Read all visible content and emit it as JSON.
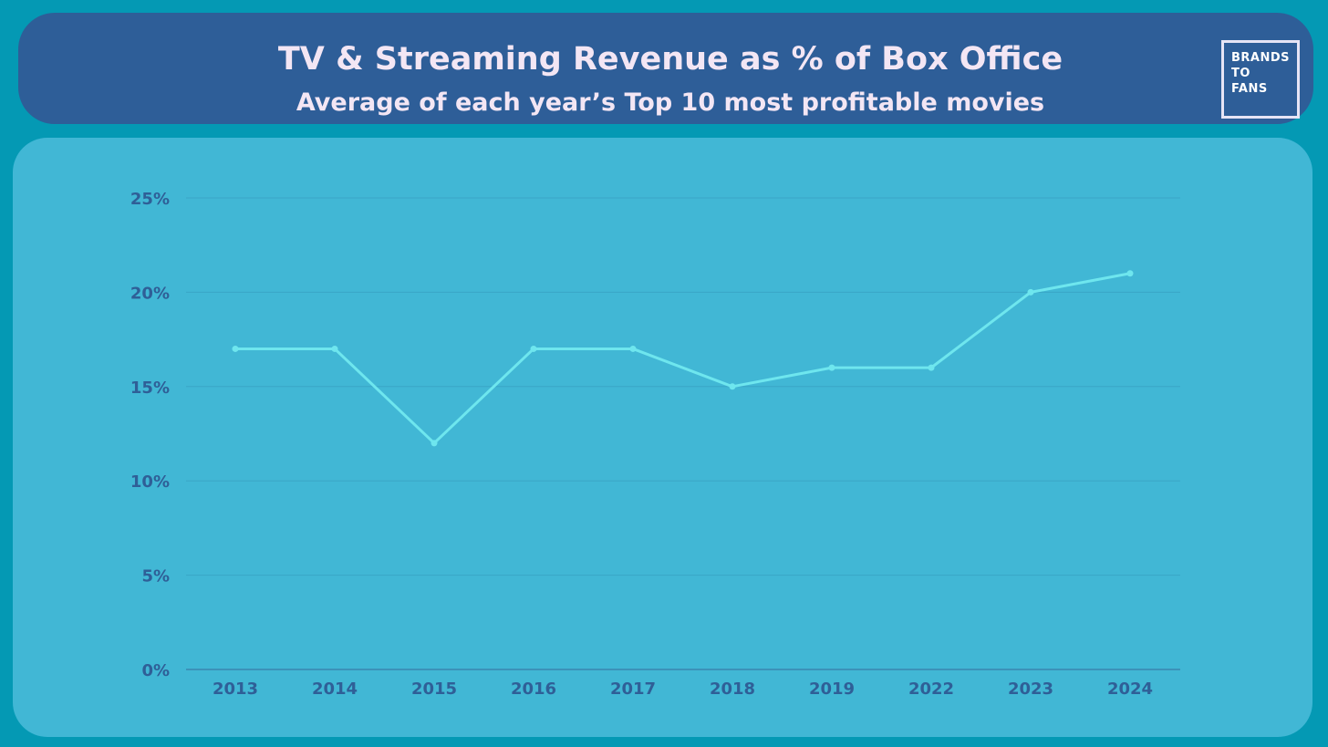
{
  "header": {
    "title": "TV & Streaming Revenue as % of Box Office",
    "subtitle": "Average of each year’s Top 10 most profitable movies",
    "logo_lines": [
      "BRANDS",
      "TO",
      "FANS"
    ]
  },
  "colors": {
    "background": "#0499b4",
    "header": "#2e5e98",
    "panel": "#41b7d5",
    "line": "#6ee6ee",
    "tick_text": "#2f5f97",
    "title_text": "#f3e6f4"
  },
  "chart_data": {
    "type": "line",
    "categories": [
      "2013",
      "2014",
      "2015",
      "2016",
      "2017",
      "2018",
      "2019",
      "2022",
      "2023",
      "2024"
    ],
    "series": [
      {
        "values": [
          17,
          17,
          12,
          17,
          17,
          15,
          16,
          16,
          20,
          21
        ]
      }
    ],
    "y_ticks": [
      "0%",
      "5%",
      "10%",
      "15%",
      "20%",
      "25%"
    ],
    "y_tick_values": [
      0,
      5,
      10,
      15,
      20,
      25
    ],
    "ylim": [
      0,
      25
    ],
    "grid": true,
    "legend": "none"
  }
}
